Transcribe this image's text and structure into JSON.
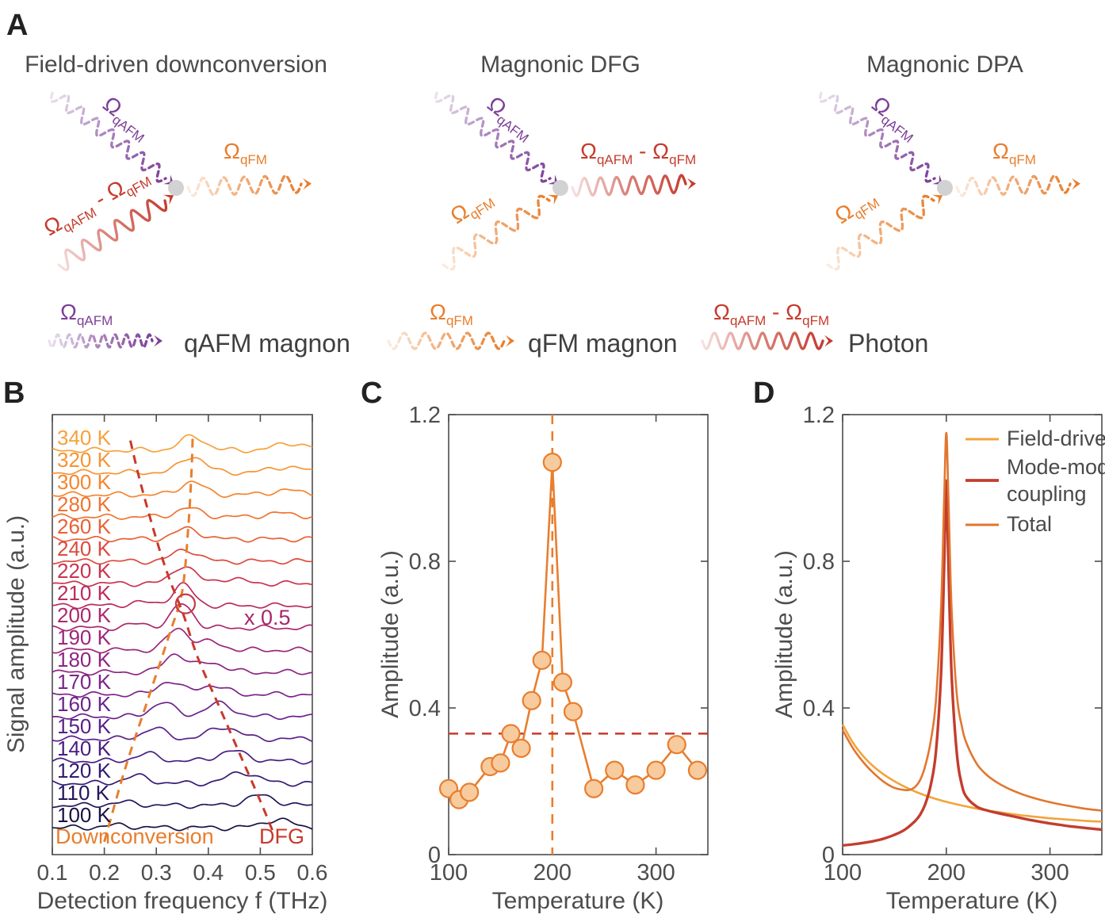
{
  "figure": {
    "panel_labels": {
      "a": "A",
      "b": "B",
      "c": "C",
      "d": "D"
    },
    "background": "#ffffff",
    "axis_color": "#4d4d4d",
    "text_color": "#4a4a4a"
  },
  "panel_a": {
    "diagrams": [
      {
        "title": "Field-driven downconversion",
        "inputs": [
          "qafm",
          "photon"
        ],
        "output": "qfm"
      },
      {
        "title": "Magnonic DFG",
        "inputs": [
          "qafm",
          "qfm"
        ],
        "output": "photon"
      },
      {
        "title": "Magnonic DPA",
        "inputs": [
          "qafm",
          "qfm"
        ],
        "output": "qfm"
      }
    ],
    "legend": [
      {
        "wave": "qafm",
        "label": "qAFM magnon"
      },
      {
        "wave": "qfm",
        "label": "qFM magnon"
      },
      {
        "wave": "photon",
        "label": "Photon"
      }
    ],
    "wave_styles": {
      "qafm": {
        "color": "#7B3F98",
        "dashed": true
      },
      "qfm": {
        "color": "#E87E2E",
        "dashed": true
      },
      "photon": {
        "color": "#C43C2E",
        "dashed": false
      }
    },
    "wave_labels": {
      "qafm": [
        {
          "t": "Ω"
        },
        {
          "t": "qAFM",
          "sub": true
        }
      ],
      "qfm": [
        {
          "t": "Ω"
        },
        {
          "t": "qFM",
          "sub": true
        }
      ],
      "photon": [
        {
          "t": "Ω"
        },
        {
          "t": "qAFM",
          "sub": true
        },
        {
          "t": " - "
        },
        {
          "t": "Ω"
        },
        {
          "t": "qFM",
          "sub": true
        }
      ]
    },
    "interaction_dot_color": "#d2d2d2"
  },
  "chart_data": [
    {
      "id": "B",
      "type": "line",
      "waterfall": true,
      "xlabel": "Detection frequency f (THz)",
      "ylabel": "Signal amplitude (a.u.)",
      "xlim": [
        0.1,
        0.6
      ],
      "xticks": [
        0.1,
        0.2,
        0.3,
        0.4,
        0.5,
        0.6
      ],
      "xtick_labels": [
        "0.1",
        "0.2",
        "0.3",
        "0.4",
        "0.5",
        "0.6"
      ],
      "amplitude_unit_note": "peak amplitudes in a.u., 1 a.u. ~ 30 px of trace height",
      "traces": [
        {
          "temperature": "340 K",
          "color": "#F7A13B",
          "peaks": [
            {
              "f": 0.37,
              "a": 0.58,
              "w": 0.024
            },
            {
              "f": 0.56,
              "a": 0.3,
              "w": 0.03
            }
          ]
        },
        {
          "temperature": "320 K",
          "color": "#F69434",
          "peaks": [
            {
              "f": 0.37,
              "a": 0.68,
              "w": 0.023
            },
            {
              "f": 0.55,
              "a": 0.24,
              "w": 0.03
            }
          ]
        },
        {
          "temperature": "300 K",
          "color": "#F38630",
          "peaks": [
            {
              "f": 0.368,
              "a": 0.55,
              "w": 0.022
            },
            {
              "f": 0.55,
              "a": 0.18,
              "w": 0.03
            }
          ]
        },
        {
          "temperature": "280 K",
          "color": "#EF7431",
          "peaks": [
            {
              "f": 0.362,
              "a": 0.36,
              "w": 0.024
            },
            {
              "f": 0.54,
              "a": 0.15,
              "w": 0.03
            }
          ]
        },
        {
          "temperature": "260 K",
          "color": "#E86036",
          "peaks": [
            {
              "f": 0.36,
              "a": 0.44,
              "w": 0.024
            }
          ]
        },
        {
          "temperature": "240 K",
          "color": "#DC4A3E",
          "peaks": [
            {
              "f": 0.356,
              "a": 0.5,
              "w": 0.023
            }
          ]
        },
        {
          "temperature": "220 K",
          "color": "#C9344E",
          "peaks": [
            {
              "f": 0.352,
              "a": 0.75,
              "w": 0.021
            },
            {
              "f": 0.44,
              "a": 0.2,
              "w": 0.026
            }
          ]
        },
        {
          "temperature": "210 K",
          "color": "#BB2B5D",
          "peaks": [
            {
              "f": 0.351,
              "a": 0.88,
              "w": 0.02
            },
            {
              "f": 0.27,
              "a": 0.14,
              "w": 0.024
            }
          ]
        },
        {
          "temperature": "200 K",
          "color": "#AB276D",
          "peaks": [
            {
              "f": 0.35,
              "a": 1.0,
              "w": 0.02
            },
            {
              "f": 0.268,
              "a": 0.16,
              "w": 0.024
            }
          ]
        },
        {
          "temperature": "190 K",
          "color": "#9C267A",
          "peaks": [
            {
              "f": 0.341,
              "a": 0.9,
              "w": 0.02
            },
            {
              "f": 0.402,
              "a": 0.34,
              "w": 0.025
            }
          ]
        },
        {
          "temperature": "180 K",
          "color": "#8C2583",
          "peaks": [
            {
              "f": 0.336,
              "a": 0.78,
              "w": 0.02
            },
            {
              "f": 0.404,
              "a": 0.42,
              "w": 0.026
            }
          ]
        },
        {
          "temperature": "170 K",
          "color": "#7C2489",
          "peaks": [
            {
              "f": 0.324,
              "a": 0.56,
              "w": 0.021
            },
            {
              "f": 0.405,
              "a": 0.38,
              "w": 0.027
            }
          ]
        },
        {
          "temperature": "160 K",
          "color": "#6B228C",
          "peaks": [
            {
              "f": 0.312,
              "a": 0.62,
              "w": 0.021
            },
            {
              "f": 0.42,
              "a": 0.54,
              "w": 0.027
            }
          ]
        },
        {
          "temperature": "150 K",
          "color": "#5A2089",
          "peaks": [
            {
              "f": 0.296,
              "a": 0.44,
              "w": 0.022
            },
            {
              "f": 0.43,
              "a": 0.5,
              "w": 0.028
            }
          ]
        },
        {
          "temperature": "140 K",
          "color": "#481D82",
          "peaks": [
            {
              "f": 0.282,
              "a": 0.3,
              "w": 0.023
            },
            {
              "f": 0.446,
              "a": 0.42,
              "w": 0.028
            }
          ]
        },
        {
          "temperature": "120 K",
          "color": "#341A73",
          "peaks": [
            {
              "f": 0.262,
              "a": 0.3,
              "w": 0.024
            },
            {
              "f": 0.466,
              "a": 0.46,
              "w": 0.028
            }
          ]
        },
        {
          "temperature": "110 K",
          "color": "#23165C",
          "peaks": [
            {
              "f": 0.238,
              "a": 0.13,
              "w": 0.026
            },
            {
              "f": 0.5,
              "a": 0.42,
              "w": 0.028
            }
          ]
        },
        {
          "temperature": "100 K",
          "color": "#161243",
          "peaks": [
            {
              "f": 0.225,
              "a": 0.1,
              "w": 0.026
            },
            {
              "f": 0.532,
              "a": 0.34,
              "w": 0.027
            }
          ]
        }
      ],
      "guides": [
        {
          "label": "Downconversion",
          "color": "#E87E2E",
          "points": [
            [
              0.2,
              0.971
            ],
            [
              0.24,
              0.805
            ],
            [
              0.285,
              0.643
            ],
            [
              0.325,
              0.5
            ],
            [
              0.35,
              0.4
            ],
            [
              0.362,
              0.247
            ],
            [
              0.368,
              0.121
            ],
            [
              0.37,
              0.045
            ]
          ]
        },
        {
          "label": "DFG",
          "color": "#C8392B",
          "points": [
            [
              0.25,
              0.059
            ],
            [
              0.27,
              0.157
            ],
            [
              0.3,
              0.283
            ],
            [
              0.325,
              0.373
            ],
            [
              0.352,
              0.454
            ],
            [
              0.38,
              0.553
            ],
            [
              0.42,
              0.661
            ],
            [
              0.46,
              0.77
            ],
            [
              0.5,
              0.878
            ],
            [
              0.525,
              0.95
            ]
          ]
        }
      ],
      "crossing_circle": {
        "f": 0.356,
        "fy": 0.43,
        "color": "#C43C46"
      },
      "annotations": {
        "downconversion": "Downconversion",
        "dfg": "DFG",
        "scale": "x 0.5",
        "scale_color": "#A8266C"
      }
    },
    {
      "id": "C",
      "type": "scatter",
      "xlabel": "Temperature (K)",
      "ylabel": "Amplitude (a.u.)",
      "xlim": [
        100,
        350
      ],
      "ylim": [
        0,
        1.2
      ],
      "xticks": [
        100,
        200,
        300
      ],
      "yticks": [
        0,
        0.4,
        0.8,
        1.2
      ],
      "xtick_labels": [
        "100",
        "200",
        "300"
      ],
      "ytick_labels": [
        "0",
        "0.4",
        "0.8",
        "1.2"
      ],
      "x": [
        100,
        110,
        120,
        140,
        150,
        160,
        170,
        180,
        190,
        200,
        210,
        220,
        240,
        260,
        280,
        300,
        320,
        340
      ],
      "y": [
        0.18,
        0.15,
        0.17,
        0.24,
        0.25,
        0.33,
        0.29,
        0.42,
        0.53,
        1.07,
        0.47,
        0.39,
        0.18,
        0.23,
        0.19,
        0.23,
        0.3,
        0.23
      ],
      "marker_fill": "#F8CB9E",
      "marker_stroke": "#E87E2E",
      "line_color": "#E87E2E",
      "vline": {
        "x": 200,
        "color": "#E87E2E"
      },
      "hline": {
        "y": 0.33,
        "color": "#C8392B"
      }
    },
    {
      "id": "D",
      "type": "line",
      "xlabel": "Temperature (K)",
      "ylabel": "Amplitude (a.u.)",
      "xlim": [
        100,
        350
      ],
      "ylim": [
        0,
        1.2
      ],
      "xticks": [
        100,
        200,
        300
      ],
      "yticks": [
        0,
        0.4,
        0.8,
        1.2
      ],
      "xtick_labels": [
        "100",
        "200",
        "300"
      ],
      "ytick_labels": [
        "0",
        "0.4",
        "0.8",
        "1.2"
      ],
      "legend_position": "upper right",
      "series": [
        {
          "name": "Field-driven",
          "legend_lines": [
            "Field-driven"
          ],
          "color": "#F2A43D",
          "width": 2.6,
          "x": [
            100,
            110,
            120,
            130,
            140,
            150,
            160,
            170,
            180,
            190,
            200,
            210,
            220,
            230,
            240,
            250,
            260,
            270,
            280,
            290,
            300,
            310,
            320,
            330,
            340,
            350
          ],
          "y": [
            0.355,
            0.305,
            0.268,
            0.24,
            0.218,
            0.2,
            0.185,
            0.172,
            0.161,
            0.152,
            0.144,
            0.137,
            0.131,
            0.125,
            0.12,
            0.116,
            0.112,
            0.108,
            0.105,
            0.102,
            0.099,
            0.097,
            0.095,
            0.093,
            0.091,
            0.09
          ]
        },
        {
          "name": "Mode-mode coupling",
          "legend_lines": [
            "Mode-mode",
            "coupling"
          ],
          "color": "#C33D2E",
          "width": 3.4,
          "x": [
            100,
            110,
            120,
            130,
            140,
            150,
            160,
            170,
            175,
            180,
            185,
            190,
            195,
            198,
            200,
            202,
            205,
            210,
            215,
            220,
            230,
            240,
            250,
            260,
            270,
            280,
            290,
            300,
            310,
            320,
            330,
            340,
            350
          ],
          "y": [
            0.025,
            0.028,
            0.032,
            0.037,
            0.044,
            0.054,
            0.068,
            0.092,
            0.11,
            0.14,
            0.19,
            0.28,
            0.5,
            0.8,
            1.02,
            0.8,
            0.5,
            0.28,
            0.19,
            0.155,
            0.13,
            0.12,
            0.113,
            0.107,
            0.101,
            0.095,
            0.09,
            0.085,
            0.081,
            0.077,
            0.074,
            0.071,
            0.068
          ]
        },
        {
          "name": "Total",
          "legend_lines": [
            "Total"
          ],
          "color": "#E2762F",
          "width": 2.6,
          "x": [
            100,
            110,
            120,
            130,
            140,
            150,
            160,
            165,
            170,
            175,
            180,
            185,
            190,
            195,
            198,
            200,
            202,
            205,
            210,
            215,
            220,
            230,
            240,
            250,
            260,
            270,
            280,
            290,
            300,
            310,
            320,
            330,
            340,
            350
          ],
          "y": [
            0.34,
            0.29,
            0.252,
            0.222,
            0.198,
            0.182,
            0.176,
            0.177,
            0.185,
            0.205,
            0.245,
            0.31,
            0.42,
            0.68,
            0.98,
            1.15,
            0.98,
            0.68,
            0.44,
            0.35,
            0.3,
            0.245,
            0.215,
            0.195,
            0.18,
            0.168,
            0.158,
            0.15,
            0.143,
            0.137,
            0.132,
            0.127,
            0.123,
            0.12
          ]
        }
      ]
    }
  ]
}
